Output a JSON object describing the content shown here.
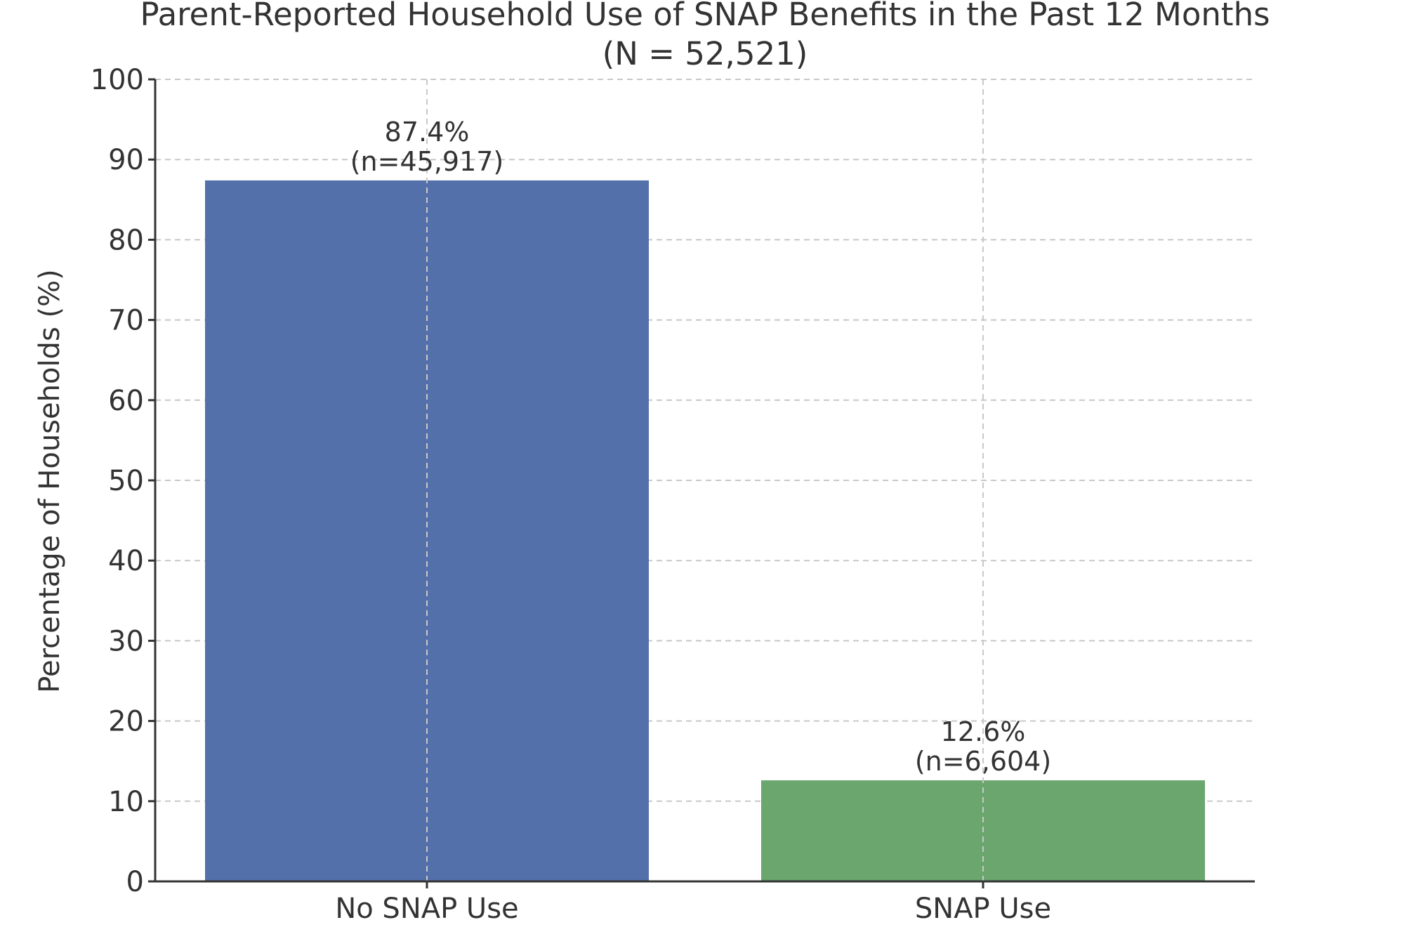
{
  "chart_data": {
    "type": "bar",
    "title": "Parent-Reported Household Use of SNAP Benefits in the Past 12 Months",
    "subtitle": "(N = 52,521)",
    "xlabel": "",
    "ylabel": "Percentage of Households (%)",
    "categories": [
      "No SNAP Use",
      "SNAP Use"
    ],
    "values": [
      87.4,
      12.6
    ],
    "counts_labels": [
      "(n=45,917)",
      "(n=6,604)"
    ],
    "value_labels": [
      "87.4%",
      "12.6%"
    ],
    "colors": [
      "#5470aa",
      "#6aa66e"
    ],
    "ylim": [
      0,
      100
    ],
    "yticks": [
      0,
      10,
      20,
      30,
      40,
      50,
      60,
      70,
      80,
      90,
      100
    ],
    "grid": true,
    "legend": "none"
  }
}
